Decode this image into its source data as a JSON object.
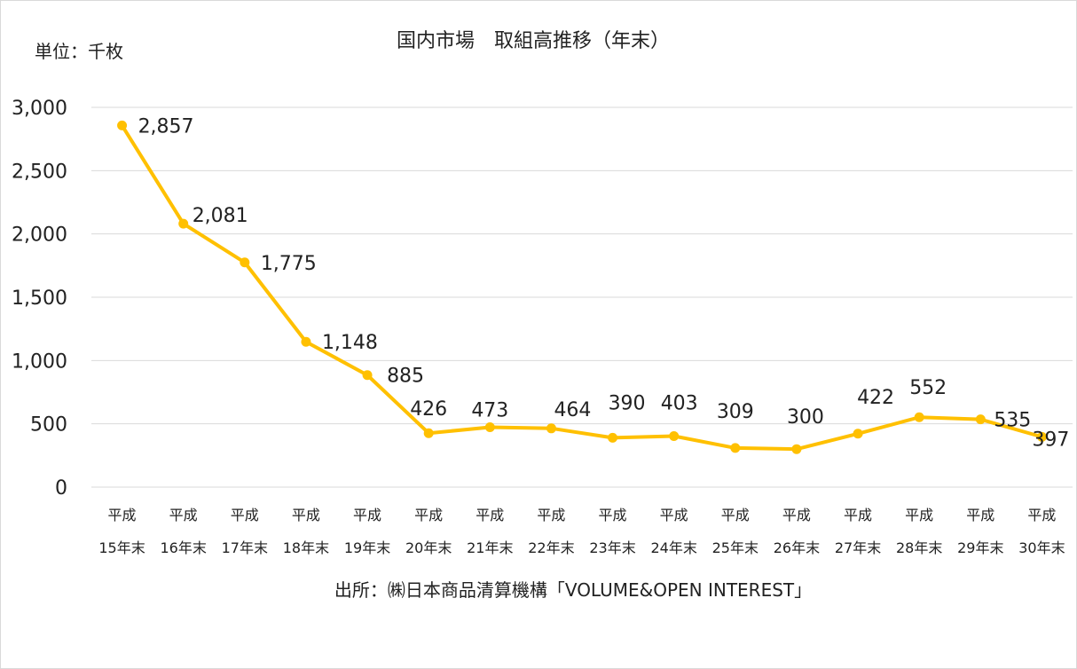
{
  "chart_data": {
    "type": "line",
    "title": "国内市場　取組高推移（年末）",
    "unit_label": "単位：千枚",
    "source": "出所：㈱日本商品清算機構「VOLUME&OPEN INTEREST」",
    "categories": [
      [
        "平成",
        "15年末"
      ],
      [
        "平成",
        "16年末"
      ],
      [
        "平成",
        "17年末"
      ],
      [
        "平成",
        "18年末"
      ],
      [
        "平成",
        "19年末"
      ],
      [
        "平成",
        "20年末"
      ],
      [
        "平成",
        "21年末"
      ],
      [
        "平成",
        "22年末"
      ],
      [
        "平成",
        "23年末"
      ],
      [
        "平成",
        "24年末"
      ],
      [
        "平成",
        "25年末"
      ],
      [
        "平成",
        "26年末"
      ],
      [
        "平成",
        "27年末"
      ],
      [
        "平成",
        "28年末"
      ],
      [
        "平成",
        "29年末"
      ],
      [
        "平成",
        "30年末"
      ]
    ],
    "series": [
      {
        "name": "取組高",
        "values": [
          2857,
          2081,
          1775,
          1148,
          885,
          426,
          473,
          464,
          390,
          403,
          309,
          300,
          422,
          552,
          535,
          397
        ],
        "color": "#FFC000"
      }
    ],
    "data_labels": [
      "2,857",
      "2,081",
      "1,775",
      "1,148",
      "885",
      "426",
      "473",
      "464",
      "390",
      "403",
      "309",
      "300",
      "422",
      "552",
      "535",
      "397"
    ],
    "yticks": [
      0,
      500,
      1000,
      1500,
      2000,
      2500,
      3000
    ],
    "ytick_labels": [
      "0",
      "500",
      "1,000",
      "1,500",
      "2,000",
      "2,500",
      "3,000"
    ],
    "ylim": [
      0,
      3000
    ],
    "grid": true,
    "gridline_color": "#d9d9d9"
  }
}
